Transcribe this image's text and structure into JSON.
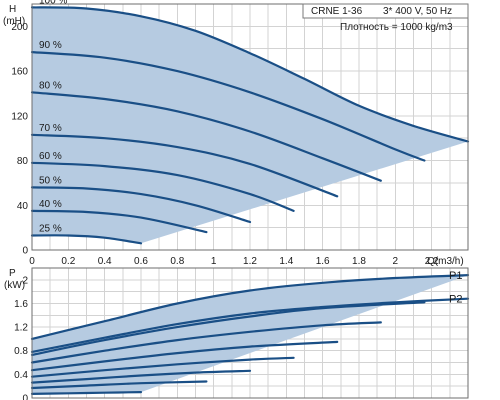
{
  "header": {
    "model": "CRNE 1-36",
    "supply": "3* 400 V, 50 Hz",
    "density": "Плотность = 1000 kg/m3"
  },
  "chart_data": [
    {
      "type": "line",
      "ylabel_top": "H",
      "ylabel_unit": "(mH)",
      "xlabel": "Q(m3/h)",
      "xlim": [
        0,
        2.4
      ],
      "ylim": [
        0,
        220
      ],
      "x_ticks": [
        0,
        0.2,
        0.4,
        0.6,
        0.8,
        1,
        1.2,
        1.4,
        1.6,
        1.8,
        2,
        2.2
      ],
      "y_ticks": [
        0,
        40,
        80,
        120,
        160,
        200
      ],
      "grid": true,
      "series": [
        {
          "name": "100 %",
          "x": [
            0,
            0.3,
            0.6,
            0.9,
            1.2,
            1.5,
            1.8,
            2.1,
            2.4
          ],
          "y": [
            217,
            216,
            209,
            196,
            176,
            153,
            129,
            111,
            97
          ]
        },
        {
          "name": "90 %",
          "x": [
            0,
            0.4,
            0.8,
            1.2,
            1.6,
            2.0,
            2.16
          ],
          "y": [
            177,
            172,
            160,
            141,
            117,
            90,
            80
          ]
        },
        {
          "name": "80 %",
          "x": [
            0,
            0.4,
            0.8,
            1.2,
            1.6,
            1.92
          ],
          "y": [
            141,
            135,
            124,
            106,
            82,
            62
          ]
        },
        {
          "name": "70 %",
          "x": [
            0,
            0.4,
            0.8,
            1.2,
            1.68
          ],
          "y": [
            103,
            100,
            92,
            77,
            48
          ]
        },
        {
          "name": "60 %",
          "x": [
            0,
            0.4,
            0.8,
            1.2,
            1.44
          ],
          "y": [
            78,
            75,
            67,
            50,
            35
          ]
        },
        {
          "name": "50 %",
          "x": [
            0,
            0.3,
            0.6,
            0.9,
            1.2
          ],
          "y": [
            56,
            55,
            50,
            40,
            25
          ]
        },
        {
          "name": "40 %",
          "x": [
            0,
            0.3,
            0.6,
            0.96
          ],
          "y": [
            35,
            34,
            29,
            16
          ]
        },
        {
          "name": "25 %",
          "x": [
            0,
            0.2,
            0.4,
            0.6
          ],
          "y": [
            13,
            13,
            11,
            6
          ]
        }
      ],
      "envelope_note": "shaded operating range bounded by the 100 % curve, the run-out line and the 25 % curve"
    },
    {
      "type": "line",
      "ylabel_top": "P",
      "ylabel_unit": "(kW)",
      "xlim": [
        0,
        2.4
      ],
      "ylim": [
        0,
        2.2
      ],
      "y_ticks": [
        0,
        0.4,
        0.8,
        1.2,
        1.6,
        2
      ],
      "grid": true,
      "series": [
        {
          "name": "P1",
          "x": [
            0,
            0.4,
            0.8,
            1.2,
            1.6,
            2.0,
            2.4
          ],
          "y": [
            1.0,
            1.3,
            1.6,
            1.82,
            1.95,
            2.03,
            2.08
          ]
        },
        {
          "name": "P2",
          "x": [
            0,
            0.4,
            0.8,
            1.2,
            1.6,
            2.0,
            2.4
          ],
          "y": [
            0.78,
            1.02,
            1.25,
            1.43,
            1.54,
            1.62,
            1.68
          ]
        }
      ],
      "unlabeled_speed_curves": [
        {
          "x": [
            0,
            0.4,
            0.8,
            1.2,
            1.6,
            2.16
          ],
          "y": [
            0.73,
            0.98,
            1.2,
            1.38,
            1.52,
            1.62
          ]
        },
        {
          "x": [
            0,
            0.4,
            0.8,
            1.2,
            1.6,
            1.92
          ],
          "y": [
            0.6,
            0.8,
            0.98,
            1.12,
            1.23,
            1.28
          ]
        },
        {
          "x": [
            0,
            0.4,
            0.8,
            1.2,
            1.68
          ],
          "y": [
            0.47,
            0.62,
            0.76,
            0.87,
            0.95
          ]
        },
        {
          "x": [
            0,
            0.4,
            0.8,
            1.2,
            1.44
          ],
          "y": [
            0.36,
            0.47,
            0.57,
            0.65,
            0.68
          ]
        },
        {
          "x": [
            0,
            0.3,
            0.6,
            0.9,
            1.2
          ],
          "y": [
            0.26,
            0.32,
            0.38,
            0.43,
            0.46
          ]
        },
        {
          "x": [
            0,
            0.3,
            0.6,
            0.96
          ],
          "y": [
            0.17,
            0.21,
            0.25,
            0.28
          ]
        },
        {
          "x": [
            0,
            0.2,
            0.4,
            0.6
          ],
          "y": [
            0.07,
            0.08,
            0.09,
            0.1
          ]
        }
      ]
    }
  ],
  "colors": {
    "curve": "#1a4f86",
    "envelope": "#b6cbe1",
    "grid": "#d3d3d3"
  }
}
